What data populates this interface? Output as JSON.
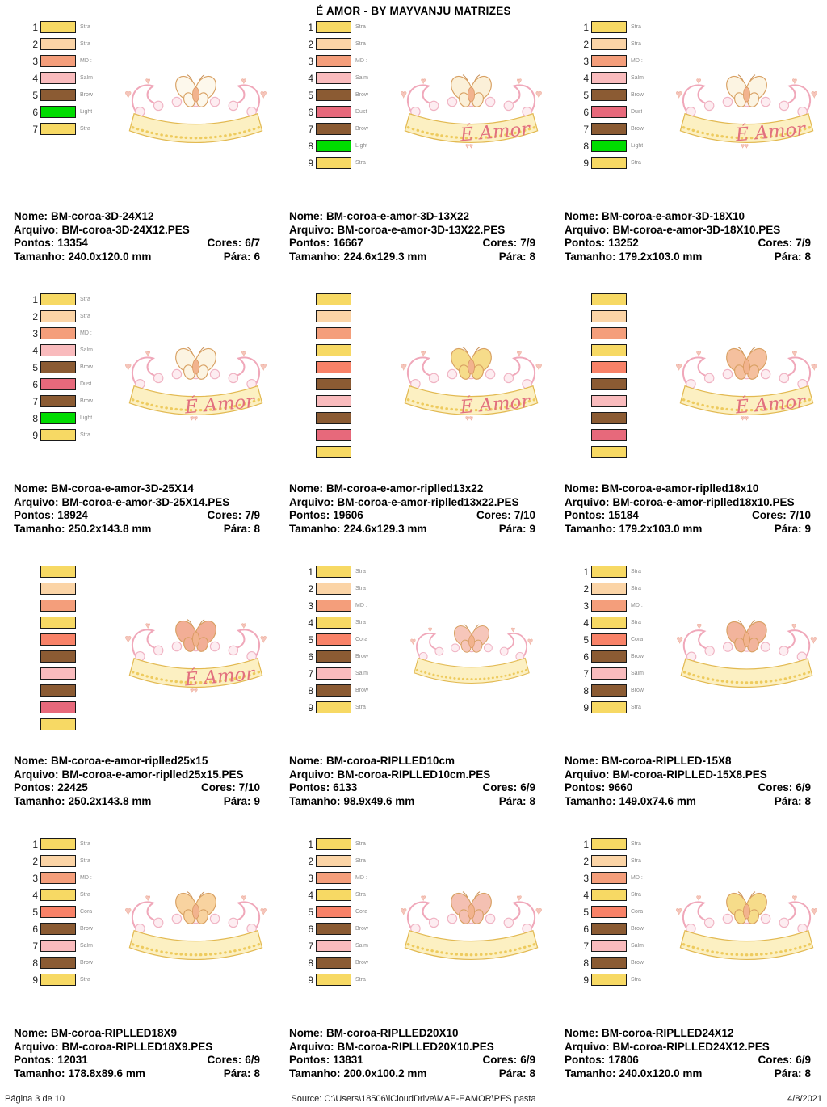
{
  "title": "É AMOR - BY MAYVANJU MATRIZES",
  "labels": {
    "nome": "Nome:",
    "arquivo": "Arquivo:",
    "pontos": "Pontos:",
    "cores": "Cores:",
    "tamanho": "Tamanho:",
    "para": "Pára:"
  },
  "footer": {
    "page": "Página 3 de 10",
    "source": "Source: C:\\Users\\18506\\iCloudDrive\\MAE-EAMOR\\PES pasta",
    "date": "4/8/2021"
  },
  "designs": [
    {
      "nome": "BM-coroa-3D-24X12",
      "arquivo": "BM-coroa-3D-24X12.PES",
      "pontos": "13354",
      "cores": "6/7",
      "tamanho": "240.0x120.0 mm",
      "para": "6",
      "amor_text": "",
      "butterfly_color": "#FDF8EC",
      "threads": [
        {
          "num": "1",
          "label": "Stra",
          "color": "#F7D964"
        },
        {
          "num": "2",
          "label": "Stra",
          "color": "#FBD4A6"
        },
        {
          "num": "3",
          "label": "MD :",
          "color": "#F49E7B"
        },
        {
          "num": "4",
          "label": "Salm",
          "color": "#F9BBBD"
        },
        {
          "num": "5",
          "label": "Brow",
          "color": "#8B5B33"
        },
        {
          "num": "6",
          "label": "Light",
          "color": "#00DC00"
        },
        {
          "num": "7",
          "label": "Stra",
          "color": "#F7D964"
        }
      ]
    },
    {
      "nome": "BM-coroa-e-amor-3D-13X22",
      "arquivo": "BM-coroa-e-amor-3D-13X22.PES",
      "pontos": "16667",
      "cores": "7/9",
      "tamanho": "224.6x129.3 mm",
      "para": "8",
      "amor_text": "É Amor",
      "butterfly_color": "#FBF0D8",
      "threads": [
        {
          "num": "1",
          "label": "Stra",
          "color": "#F7D964"
        },
        {
          "num": "2",
          "label": "Stra",
          "color": "#FBD4A6"
        },
        {
          "num": "3",
          "label": "MD :",
          "color": "#F49E7B"
        },
        {
          "num": "4",
          "label": "Salm",
          "color": "#F9BBBD"
        },
        {
          "num": "5",
          "label": "Brow",
          "color": "#8B5B33"
        },
        {
          "num": "6",
          "label": "Dust",
          "color": "#E7697B"
        },
        {
          "num": "7",
          "label": "Brow",
          "color": "#8B5B33"
        },
        {
          "num": "8",
          "label": "Light",
          "color": "#00DC00"
        },
        {
          "num": "9",
          "label": "Stra",
          "color": "#F7D964"
        }
      ]
    },
    {
      "nome": "BM-coroa-e-amor-3D-18X10",
      "arquivo": "BM-coroa-e-amor-3D-18X10.PES",
      "pontos": "13252",
      "cores": "7/9",
      "tamanho": "179.2x103.0 mm",
      "para": "8",
      "amor_text": "É Amor",
      "butterfly_color": "#FCF4E2",
      "threads": [
        {
          "num": "1",
          "label": "Stra",
          "color": "#F7D964"
        },
        {
          "num": "2",
          "label": "Stra",
          "color": "#FBD4A6"
        },
        {
          "num": "3",
          "label": "MD :",
          "color": "#F49E7B"
        },
        {
          "num": "4",
          "label": "Salm",
          "color": "#F9BBBD"
        },
        {
          "num": "5",
          "label": "Brow",
          "color": "#8B5B33"
        },
        {
          "num": "6",
          "label": "Dust",
          "color": "#E7697B"
        },
        {
          "num": "7",
          "label": "Brow",
          "color": "#8B5B33"
        },
        {
          "num": "8",
          "label": "Light",
          "color": "#00DC00"
        },
        {
          "num": "9",
          "label": "Stra",
          "color": "#F7D964"
        }
      ]
    },
    {
      "nome": "BM-coroa-e-amor-3D-25X14",
      "arquivo": "BM-coroa-e-amor-3D-25X14.PES",
      "pontos": "18924",
      "cores": "7/9",
      "tamanho": "250.2x143.8 mm",
      "para": "8",
      "amor_text": "É Amor",
      "butterfly_color": "#FCF4E2",
      "threads": [
        {
          "num": "1",
          "label": "Stra",
          "color": "#F7D964"
        },
        {
          "num": "2",
          "label": "Stra",
          "color": "#FBD4A6"
        },
        {
          "num": "3",
          "label": "MD :",
          "color": "#F49E7B"
        },
        {
          "num": "4",
          "label": "Salm",
          "color": "#F9BBBD"
        },
        {
          "num": "5",
          "label": "Brow",
          "color": "#8B5B33"
        },
        {
          "num": "6",
          "label": "Dust",
          "color": "#E7697B"
        },
        {
          "num": "7",
          "label": "Brow",
          "color": "#8B5B33"
        },
        {
          "num": "8",
          "label": "Light",
          "color": "#00DC00"
        },
        {
          "num": "9",
          "label": "Stra",
          "color": "#F7D964"
        }
      ]
    },
    {
      "nome": "BM-coroa-e-amor-riplled13x22",
      "arquivo": "BM-coroa-e-amor-riplled13x22.PES",
      "pontos": "19606",
      "cores": "7/10",
      "tamanho": "224.6x129.3 mm",
      "para": "9",
      "amor_text": "É Amor",
      "butterfly_color": "#F6DC8A",
      "threads": [
        {
          "num": "",
          "label": "",
          "color": "#F7D964"
        },
        {
          "num": "",
          "label": "",
          "color": "#FBD4A6"
        },
        {
          "num": "",
          "label": "",
          "color": "#F49E7B"
        },
        {
          "num": "",
          "label": "",
          "color": "#F7D964"
        },
        {
          "num": "",
          "label": "",
          "color": "#F88268"
        },
        {
          "num": "",
          "label": "",
          "color": "#8B5B33"
        },
        {
          "num": "",
          "label": "",
          "color": "#F9BBBD"
        },
        {
          "num": "",
          "label": "",
          "color": "#8B5B33"
        },
        {
          "num": "",
          "label": "",
          "color": "#E7697B"
        },
        {
          "num": "",
          "label": "",
          "color": "#F7D964"
        }
      ]
    },
    {
      "nome": "BM-coroa-e-amor-riplled18x10",
      "arquivo": "BM-coroa-e-amor-riplled18x10.PES",
      "pontos": "15184",
      "cores": "7/10",
      "tamanho": "179.2x103.0 mm",
      "para": "9",
      "amor_text": "É Amor",
      "butterfly_color": "#F5C09E",
      "threads": [
        {
          "num": "",
          "label": "",
          "color": "#F7D964"
        },
        {
          "num": "",
          "label": "",
          "color": "#FBD4A6"
        },
        {
          "num": "",
          "label": "",
          "color": "#F49E7B"
        },
        {
          "num": "",
          "label": "",
          "color": "#F7D964"
        },
        {
          "num": "",
          "label": "",
          "color": "#F88268"
        },
        {
          "num": "",
          "label": "",
          "color": "#8B5B33"
        },
        {
          "num": "",
          "label": "",
          "color": "#F9BBBD"
        },
        {
          "num": "",
          "label": "",
          "color": "#8B5B33"
        },
        {
          "num": "",
          "label": "",
          "color": "#E7697B"
        },
        {
          "num": "",
          "label": "",
          "color": "#F7D964"
        }
      ]
    },
    {
      "nome": "BM-coroa-e-amor-riplled25x15",
      "arquivo": "BM-coroa-e-amor-riplled25x15.PES",
      "pontos": "22425",
      "cores": "7/10",
      "tamanho": "250.2x143.8 mm",
      "para": "9",
      "amor_text": "É Amor",
      "butterfly_color": "#F2AE96",
      "threads": [
        {
          "num": "",
          "label": "",
          "color": "#F7D964"
        },
        {
          "num": "",
          "label": "",
          "color": "#FBD4A6"
        },
        {
          "num": "",
          "label": "",
          "color": "#F49E7B"
        },
        {
          "num": "",
          "label": "",
          "color": "#F7D964"
        },
        {
          "num": "",
          "label": "",
          "color": "#F88268"
        },
        {
          "num": "",
          "label": "",
          "color": "#8B5B33"
        },
        {
          "num": "",
          "label": "",
          "color": "#F9BBBD"
        },
        {
          "num": "",
          "label": "",
          "color": "#8B5B33"
        },
        {
          "num": "",
          "label": "",
          "color": "#E7697B"
        },
        {
          "num": "",
          "label": "",
          "color": "#F7D964"
        }
      ]
    },
    {
      "nome": "BM-coroa-RIPLLED10cm",
      "arquivo": "BM-coroa-RIPLLED10cm.PES",
      "pontos": "6133",
      "cores": "6/9",
      "tamanho": "98.9x49.6 mm",
      "para": "8",
      "amor_text": "",
      "butterfly_color": "#F6C6BA",
      "threads": [
        {
          "num": "1",
          "label": "Stra",
          "color": "#F7D964"
        },
        {
          "num": "2",
          "label": "Stra",
          "color": "#FBD4A6"
        },
        {
          "num": "3",
          "label": "MD :",
          "color": "#F49E7B"
        },
        {
          "num": "4",
          "label": "Stra",
          "color": "#F7D964"
        },
        {
          "num": "5",
          "label": "Cora",
          "color": "#F88268"
        },
        {
          "num": "6",
          "label": "Brow",
          "color": "#8B5B33"
        },
        {
          "num": "7",
          "label": "Salm",
          "color": "#F9BBBD"
        },
        {
          "num": "8",
          "label": "Brow",
          "color": "#8B5B33"
        },
        {
          "num": "9",
          "label": "Stra",
          "color": "#F7D964"
        }
      ]
    },
    {
      "nome": "BM-coroa-RIPLLED-15X8",
      "arquivo": "BM-coroa-RIPLLED-15X8.PES",
      "pontos": "9660",
      "cores": "6/9",
      "tamanho": "149.0x74.6 mm",
      "para": "8",
      "amor_text": "",
      "butterfly_color": "#F2B49C",
      "threads": [
        {
          "num": "1",
          "label": "Stra",
          "color": "#F7D964"
        },
        {
          "num": "2",
          "label": "Stra",
          "color": "#FBD4A6"
        },
        {
          "num": "3",
          "label": "MD :",
          "color": "#F49E7B"
        },
        {
          "num": "4",
          "label": "Stra",
          "color": "#F7D964"
        },
        {
          "num": "5",
          "label": "Cora",
          "color": "#F88268"
        },
        {
          "num": "6",
          "label": "Brow",
          "color": "#8B5B33"
        },
        {
          "num": "7",
          "label": "Salm",
          "color": "#F9BBBD"
        },
        {
          "num": "8",
          "label": "Brow",
          "color": "#8B5B33"
        },
        {
          "num": "9",
          "label": "Stra",
          "color": "#F7D964"
        }
      ]
    },
    {
      "nome": "BM-coroa-RIPLLED18X9",
      "arquivo": "BM-coroa-RIPLLED18X9.PES",
      "pontos": "12031",
      "cores": "6/9",
      "tamanho": "178.8x89.6 mm",
      "para": "8",
      "amor_text": "",
      "butterfly_color": "#F8D3A0",
      "threads": [
        {
          "num": "1",
          "label": "Stra",
          "color": "#F7D964"
        },
        {
          "num": "2",
          "label": "Stra",
          "color": "#FBD4A6"
        },
        {
          "num": "3",
          "label": "MD :",
          "color": "#F49E7B"
        },
        {
          "num": "4",
          "label": "Stra",
          "color": "#F7D964"
        },
        {
          "num": "5",
          "label": "Cora",
          "color": "#F88268"
        },
        {
          "num": "6",
          "label": "Brow",
          "color": "#8B5B33"
        },
        {
          "num": "7",
          "label": "Salm",
          "color": "#F9BBBD"
        },
        {
          "num": "8",
          "label": "Brow",
          "color": "#8B5B33"
        },
        {
          "num": "9",
          "label": "Stra",
          "color": "#F7D964"
        }
      ]
    },
    {
      "nome": "BM-coroa-RIPLLED20X10",
      "arquivo": "BM-coroa-RIPLLED20X10.PES",
      "pontos": "13831",
      "cores": "6/9",
      "tamanho": "200.0x100.2 mm",
      "para": "8",
      "amor_text": "",
      "butterfly_color": "#F4C0B2",
      "threads": [
        {
          "num": "1",
          "label": "Stra",
          "color": "#F7D964"
        },
        {
          "num": "2",
          "label": "Stra",
          "color": "#FBD4A6"
        },
        {
          "num": "3",
          "label": "MD :",
          "color": "#F49E7B"
        },
        {
          "num": "4",
          "label": "Stra",
          "color": "#F7D964"
        },
        {
          "num": "5",
          "label": "Cora",
          "color": "#F88268"
        },
        {
          "num": "6",
          "label": "Brow",
          "color": "#8B5B33"
        },
        {
          "num": "7",
          "label": "Salm",
          "color": "#F9BBBD"
        },
        {
          "num": "8",
          "label": "Brow",
          "color": "#8B5B33"
        },
        {
          "num": "9",
          "label": "Stra",
          "color": "#F7D964"
        }
      ]
    },
    {
      "nome": "BM-coroa-RIPLLED24X12",
      "arquivo": "BM-coroa-RIPLLED24X12.PES",
      "pontos": "17806",
      "cores": "6/9",
      "tamanho": "240.0x120.0 mm",
      "para": "8",
      "amor_text": "",
      "butterfly_color": "#F6DC8A",
      "threads": [
        {
          "num": "1",
          "label": "Stra",
          "color": "#F7D964"
        },
        {
          "num": "2",
          "label": "Stra",
          "color": "#FBD4A6"
        },
        {
          "num": "3",
          "label": "MD :",
          "color": "#F49E7B"
        },
        {
          "num": "4",
          "label": "Stra",
          "color": "#F7D964"
        },
        {
          "num": "5",
          "label": "Cora",
          "color": "#F88268"
        },
        {
          "num": "6",
          "label": "Brow",
          "color": "#8B5B33"
        },
        {
          "num": "7",
          "label": "Salm",
          "color": "#F9BBBD"
        },
        {
          "num": "8",
          "label": "Brow",
          "color": "#8B5B33"
        },
        {
          "num": "9",
          "label": "Stra",
          "color": "#F7D964"
        }
      ]
    }
  ]
}
